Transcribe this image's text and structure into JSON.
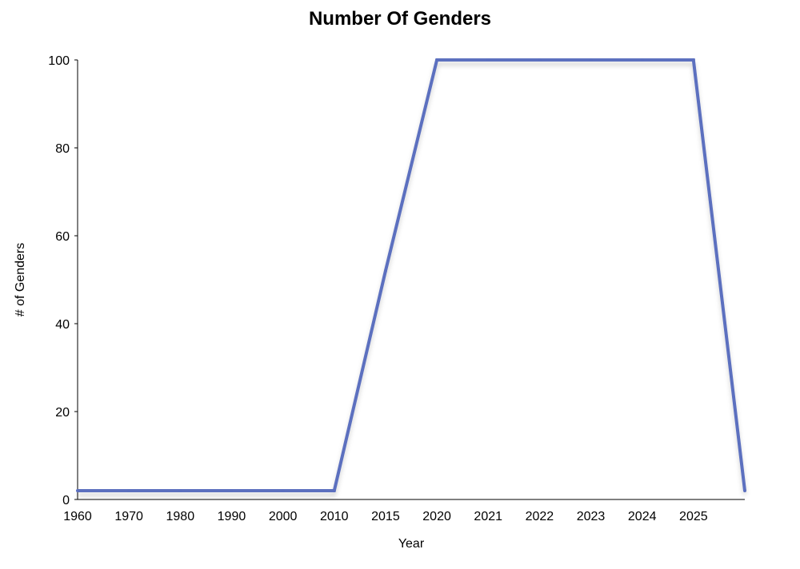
{
  "chart_data": {
    "type": "line",
    "title": "Number Of Genders",
    "xlabel": "Year",
    "ylabel": "# of Genders",
    "categories": [
      "1960",
      "1970",
      "1980",
      "1990",
      "2000",
      "2010",
      "2015",
      "2020",
      "2021",
      "2022",
      "2023",
      "2024",
      "2025",
      ""
    ],
    "series": [
      {
        "values": [
          2,
          2,
          2,
          2,
          2,
          2,
          52,
          100,
          100,
          100,
          100,
          100,
          100,
          2
        ]
      }
    ],
    "ylim": [
      0,
      100
    ],
    "yticks": [
      0,
      20,
      40,
      60,
      80,
      100
    ],
    "grid": false,
    "colors": {
      "line": "#5b6fbf",
      "axis": "#000000"
    }
  }
}
